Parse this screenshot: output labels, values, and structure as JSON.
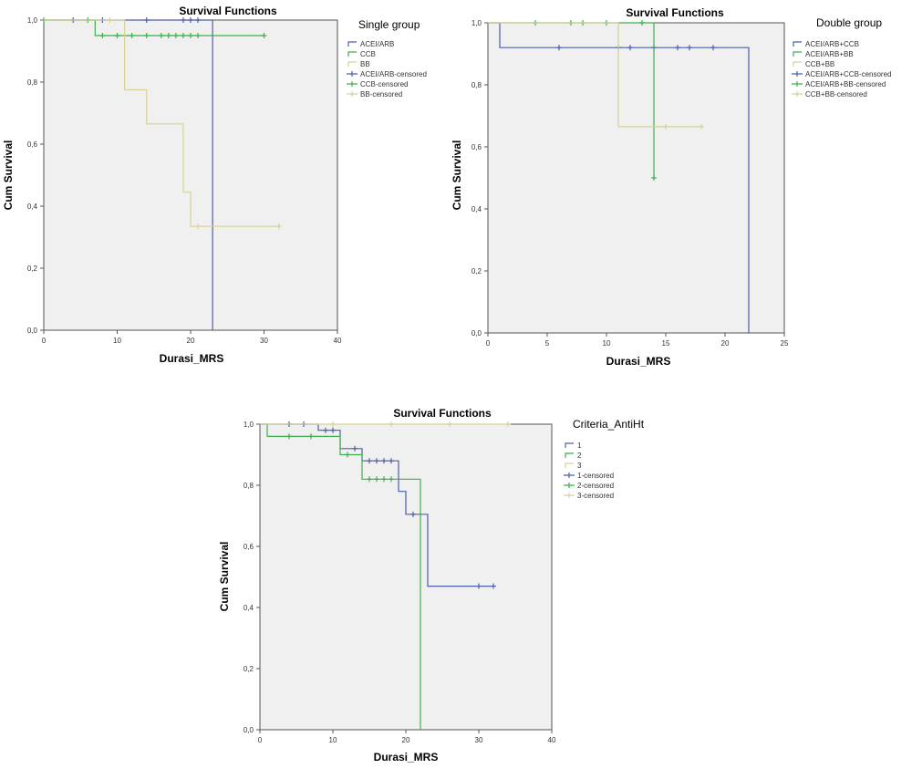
{
  "chart_data": [
    {
      "type": "line",
      "title": "Survival Functions",
      "legend_title": "Single group",
      "xlabel": "Durasi_MRS",
      "ylabel": "Cum Survival",
      "xlim": [
        0,
        40
      ],
      "ylim": [
        0,
        1
      ],
      "x_ticks": [
        "0",
        "10",
        "20",
        "30",
        "40"
      ],
      "y_ticks": [
        "0,0",
        "0,2",
        "0,4",
        "0,6",
        "0,8",
        "1,0"
      ],
      "legend_labels": [
        "ACEI/ARB",
        "CCB",
        "BB",
        "ACEI/ARB-censored",
        "CCB-censored",
        "BB-censored"
      ],
      "series": [
        {
          "name": "ACEI/ARB",
          "color": "#4a5fa8",
          "steps": [
            [
              0,
              1.0
            ],
            [
              23,
              1.0
            ],
            [
              23,
              0.0
            ]
          ],
          "censored": [
            [
              4,
              1.0
            ],
            [
              8,
              1.0
            ],
            [
              14,
              1.0
            ],
            [
              19,
              1.0
            ],
            [
              20,
              1.0
            ],
            [
              21,
              1.0
            ]
          ]
        },
        {
          "name": "CCB",
          "color": "#3fae4e",
          "steps": [
            [
              0,
              1.0
            ],
            [
              7,
              1.0
            ],
            [
              7,
              0.95
            ],
            [
              30,
              0.95
            ]
          ],
          "censored": [
            [
              0,
              1.0
            ],
            [
              6,
              1.0
            ],
            [
              8,
              0.95
            ],
            [
              10,
              0.95
            ],
            [
              12,
              0.95
            ],
            [
              14,
              0.95
            ],
            [
              16,
              0.95
            ],
            [
              17,
              0.95
            ],
            [
              18,
              0.95
            ],
            [
              19,
              0.95
            ],
            [
              20,
              0.95
            ],
            [
              21,
              0.95
            ],
            [
              30,
              0.95
            ]
          ]
        },
        {
          "name": "BB",
          "color": "#d8d29a",
          "steps": [
            [
              0,
              1.0
            ],
            [
              11,
              1.0
            ],
            [
              11,
              0.775
            ],
            [
              14,
              0.775
            ],
            [
              14,
              0.665
            ],
            [
              19,
              0.665
            ],
            [
              19,
              0.445
            ],
            [
              20,
              0.445
            ],
            [
              20,
              0.335
            ],
            [
              32,
              0.335
            ]
          ],
          "censored": [
            [
              9,
              1.0
            ],
            [
              21,
              0.335
            ],
            [
              32,
              0.335
            ]
          ]
        }
      ]
    },
    {
      "type": "line",
      "title": "Survival Functions",
      "legend_title": "Double group",
      "xlabel": "Durasi_MRS",
      "ylabel": "Cum Survival",
      "xlim": [
        0,
        25
      ],
      "ylim": [
        0,
        1
      ],
      "x_ticks": [
        "0",
        "5",
        "10",
        "15",
        "20",
        "25"
      ],
      "y_ticks": [
        "0,0",
        "0,2",
        "0,4",
        "0,6",
        "0,8",
        "1,0"
      ],
      "legend_labels": [
        "ACEI/ARB+CCB",
        "ACEI/ARB+BB",
        "CCB+BB",
        "ACEI/ARB+CCB-censored",
        "ACEI/ARB+BB-censored",
        "CCB+BB-censored"
      ],
      "series": [
        {
          "name": "ACEI/ARB+CCB",
          "color": "#4a5fa8",
          "steps": [
            [
              0,
              1.0
            ],
            [
              1,
              1.0
            ],
            [
              1,
              0.92
            ],
            [
              22,
              0.92
            ],
            [
              22,
              0.0
            ]
          ],
          "censored": [
            [
              6,
              0.92
            ],
            [
              11,
              0.92
            ],
            [
              12,
              0.92
            ],
            [
              14,
              0.92
            ],
            [
              16,
              0.92
            ],
            [
              17,
              0.92
            ],
            [
              19,
              0.92
            ]
          ]
        },
        {
          "name": "ACEI/ARB+BB",
          "color": "#3fae4e",
          "steps": [
            [
              0,
              1.0
            ],
            [
              14,
              1.0
            ],
            [
              14,
              0.5
            ]
          ],
          "censored": [
            [
              4,
              1.0
            ],
            [
              7,
              1.0
            ],
            [
              8,
              1.0
            ],
            [
              10,
              1.0
            ],
            [
              13,
              1.0
            ],
            [
              14,
              0.5
            ]
          ]
        },
        {
          "name": "CCB+BB",
          "color": "#d8d29a",
          "steps": [
            [
              0,
              1.0
            ],
            [
              11,
              1.0
            ],
            [
              11,
              0.665
            ],
            [
              18,
              0.665
            ]
          ],
          "censored": [
            [
              15,
              0.665
            ],
            [
              18,
              0.665
            ]
          ]
        }
      ]
    },
    {
      "type": "line",
      "title": "Survival Functions",
      "legend_title": "Criteria_AntiHt",
      "xlabel": "Durasi_MRS",
      "ylabel": "Cum Survival",
      "xlim": [
        0,
        40
      ],
      "ylim": [
        0,
        1
      ],
      "x_ticks": [
        "0",
        "10",
        "20",
        "30",
        "40"
      ],
      "y_ticks": [
        "0,0",
        "0,2",
        "0,4",
        "0,6",
        "0,8",
        "1,0"
      ],
      "legend_labels": [
        "1",
        "2",
        "3",
        "1-censored",
        "2-censored",
        "3-censored"
      ],
      "series": [
        {
          "name": "1",
          "color": "#4a5fa8",
          "steps": [
            [
              0,
              1.0
            ],
            [
              8,
              1.0
            ],
            [
              8,
              0.98
            ],
            [
              11,
              0.98
            ],
            [
              11,
              0.92
            ],
            [
              14,
              0.92
            ],
            [
              14,
              0.88
            ],
            [
              19,
              0.88
            ],
            [
              19,
              0.78
            ],
            [
              20,
              0.78
            ],
            [
              20,
              0.705
            ],
            [
              23,
              0.705
            ],
            [
              23,
              0.47
            ],
            [
              32,
              0.47
            ]
          ],
          "censored": [
            [
              4,
              1.0
            ],
            [
              6,
              1.0
            ],
            [
              9,
              0.98
            ],
            [
              10,
              0.98
            ],
            [
              13,
              0.92
            ],
            [
              15,
              0.88
            ],
            [
              16,
              0.88
            ],
            [
              17,
              0.88
            ],
            [
              18,
              0.88
            ],
            [
              21,
              0.705
            ],
            [
              30,
              0.47
            ],
            [
              32,
              0.47
            ]
          ]
        },
        {
          "name": "2",
          "color": "#3fae4e",
          "steps": [
            [
              0,
              1.0
            ],
            [
              1,
              1.0
            ],
            [
              1,
              0.96
            ],
            [
              11,
              0.96
            ],
            [
              11,
              0.9
            ],
            [
              14,
              0.9
            ],
            [
              14,
              0.82
            ],
            [
              22,
              0.82
            ],
            [
              22,
              0.0
            ]
          ],
          "censored": [
            [
              4,
              0.96
            ],
            [
              7,
              0.96
            ],
            [
              12,
              0.9
            ],
            [
              15,
              0.82
            ],
            [
              16,
              0.82
            ],
            [
              17,
              0.82
            ],
            [
              18,
              0.82
            ]
          ]
        },
        {
          "name": "3",
          "color": "#d8d29a",
          "steps": [
            [
              0,
              1.0
            ],
            [
              34,
              1.0
            ]
          ],
          "censored": [
            [
              10,
              1.0
            ],
            [
              18,
              1.0
            ],
            [
              26,
              1.0
            ],
            [
              34,
              1.0
            ]
          ]
        }
      ]
    }
  ]
}
